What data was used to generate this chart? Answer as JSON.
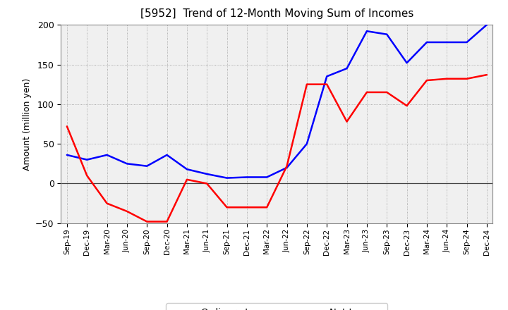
{
  "title": "[5952]  Trend of 12-Month Moving Sum of Incomes",
  "ylabel": "Amount (million yen)",
  "ylim": [
    -50,
    200
  ],
  "yticks": [
    -50,
    0,
    50,
    100,
    150,
    200
  ],
  "background_color": "#ffffff",
  "plot_bg_color": "#f0f0f0",
  "grid_color": "#999999",
  "ordinary_income_color": "#0000ff",
  "net_income_color": "#ff0000",
  "line_width": 1.8,
  "x_labels": [
    "Sep-19",
    "Dec-19",
    "Mar-20",
    "Jun-20",
    "Sep-20",
    "Dec-20",
    "Mar-21",
    "Jun-21",
    "Sep-21",
    "Dec-21",
    "Mar-22",
    "Jun-22",
    "Sep-22",
    "Dec-22",
    "Mar-23",
    "Jun-23",
    "Sep-23",
    "Dec-23",
    "Mar-24",
    "Jun-24",
    "Sep-24",
    "Dec-24"
  ],
  "ordinary_income": [
    36,
    30,
    36,
    25,
    22,
    36,
    18,
    12,
    7,
    8,
    8,
    20,
    50,
    135,
    145,
    192,
    188,
    152,
    178,
    178,
    178,
    200
  ],
  "net_income": [
    72,
    10,
    -25,
    -35,
    -48,
    -48,
    5,
    0,
    -30,
    -30,
    -30,
    22,
    125,
    125,
    78,
    115,
    115,
    98,
    130,
    132,
    132,
    137
  ]
}
